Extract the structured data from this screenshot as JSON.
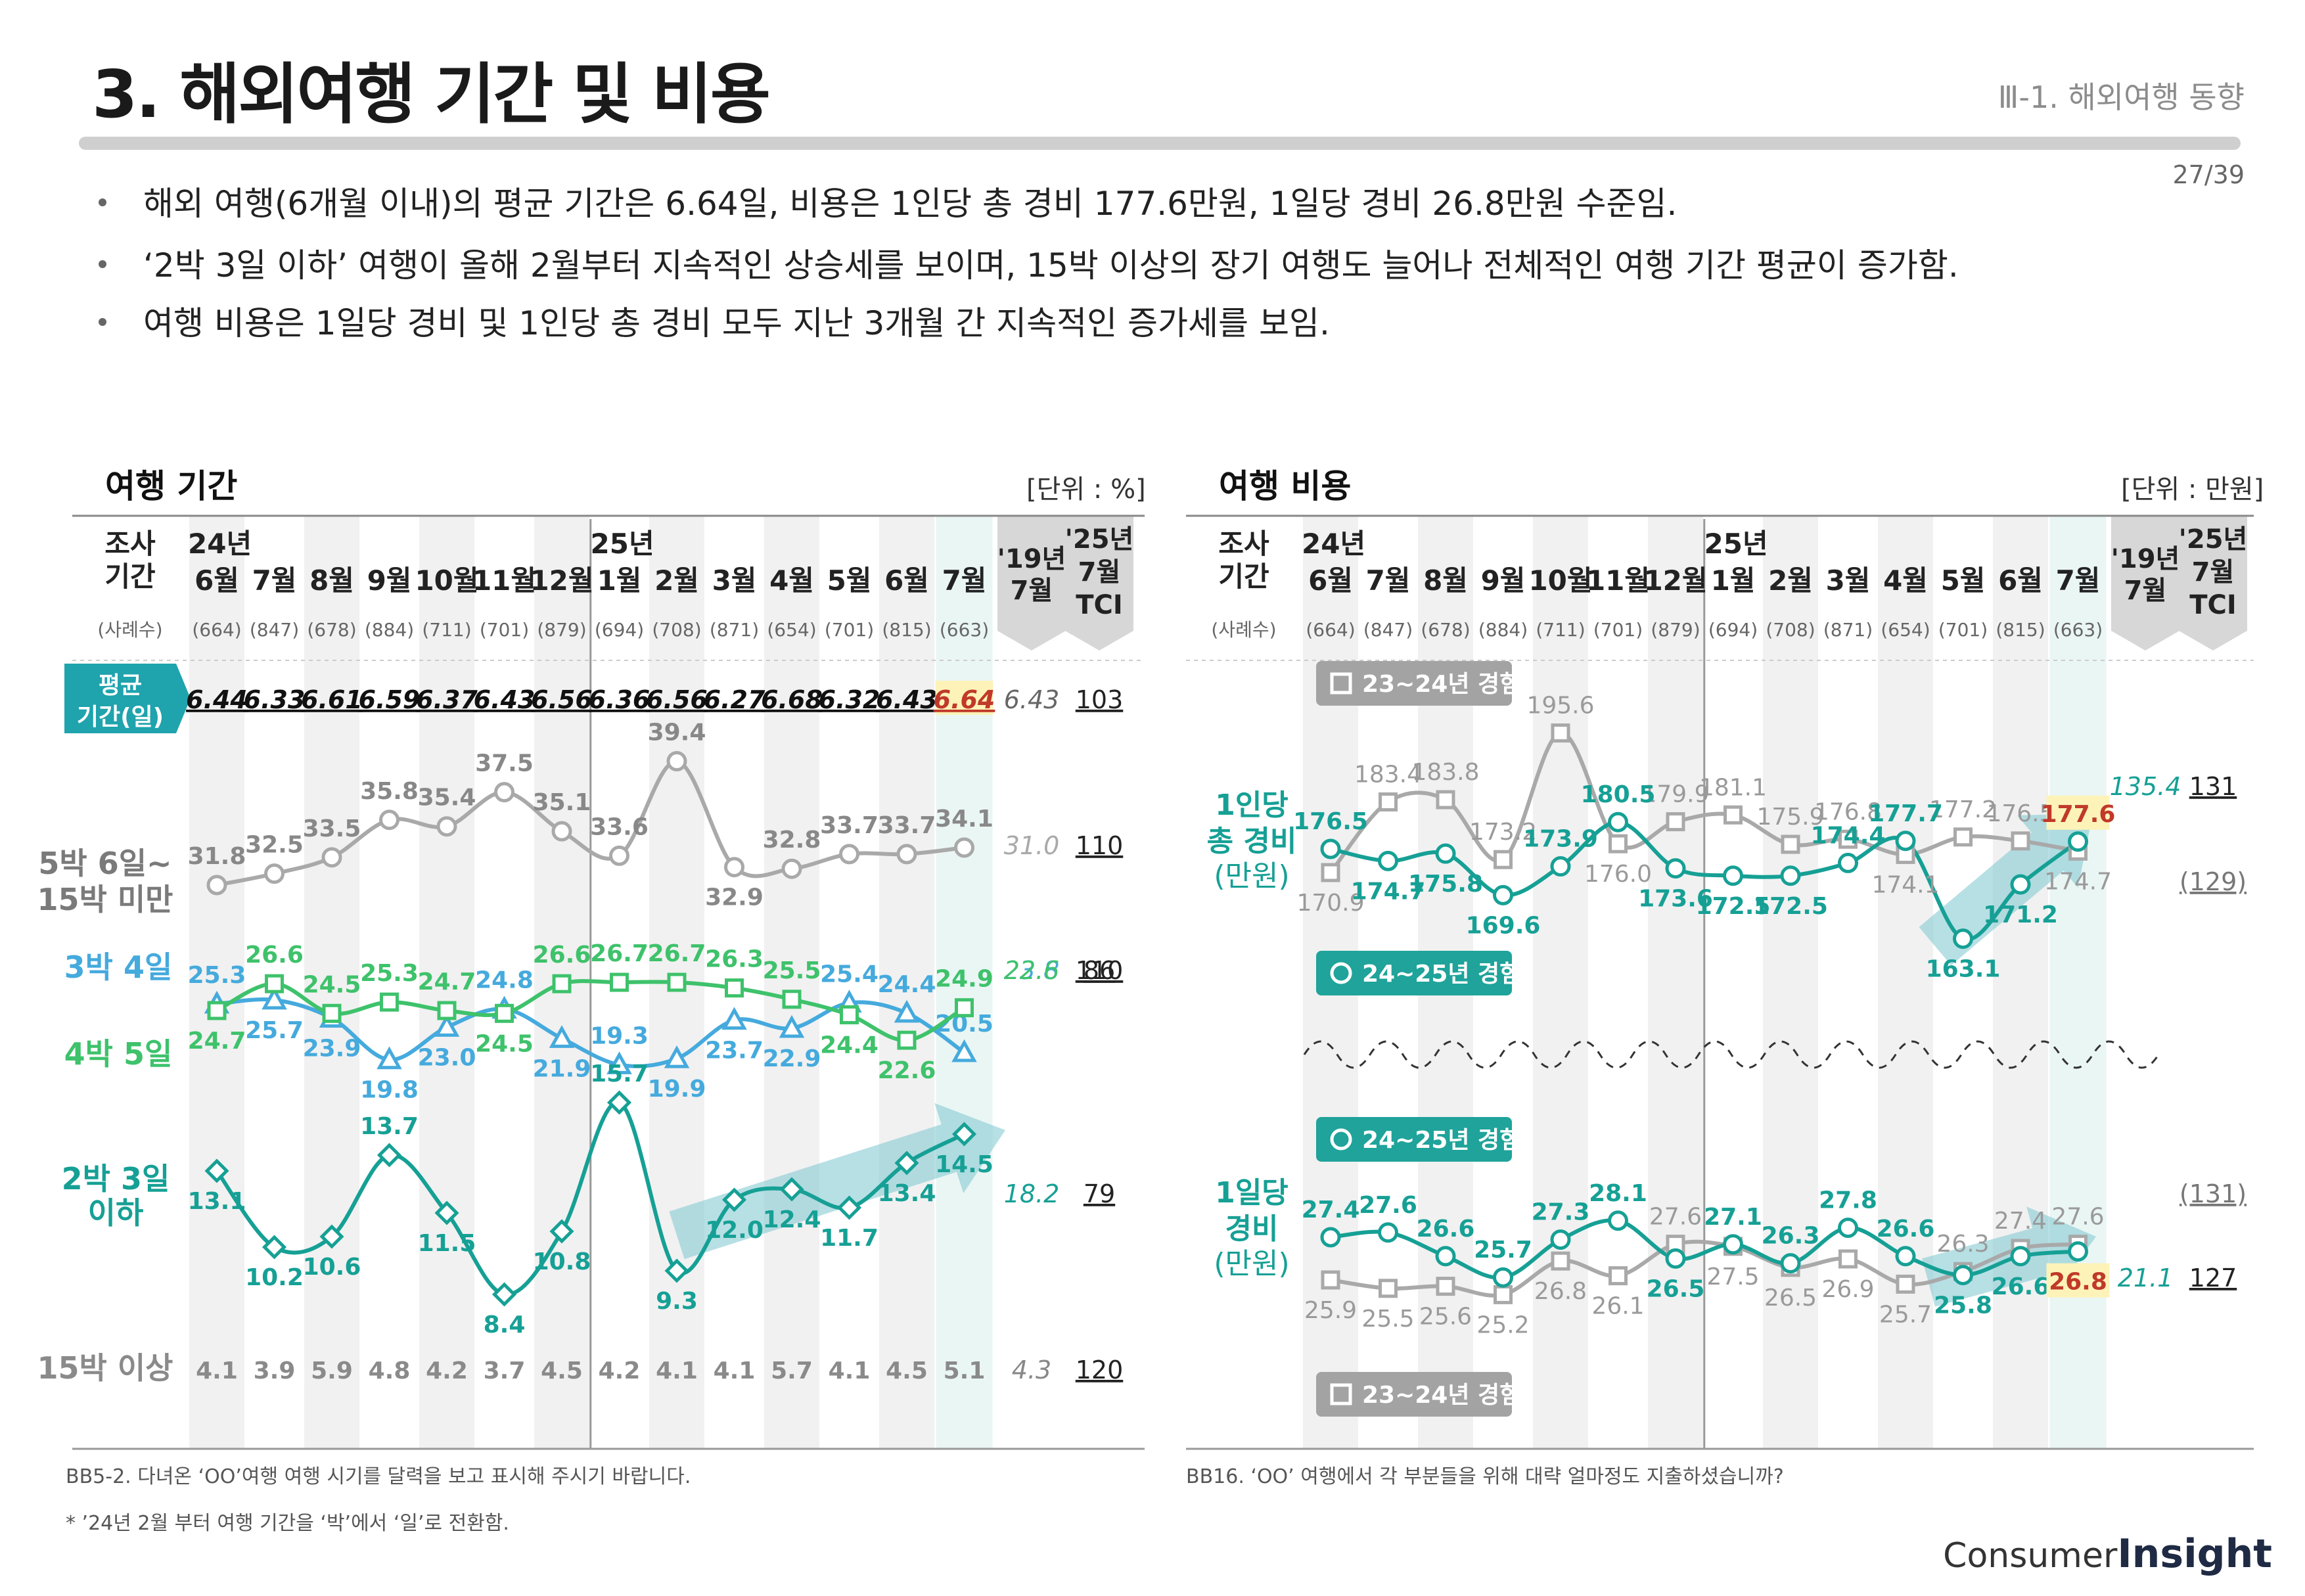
{
  "page": {
    "title": "3. 해외여행 기간 및 비용",
    "section": "Ⅲ-1. 해외여행 동향",
    "page_number": "27/39",
    "bullets": [
      "해외 여행(6개월 이내)의 평균 기간은 6.64일, 비용은 1인당 총 경비 177.6만원, 1일당 경비 26.8만원 수준임.",
      "‘2박 3일 이하’ 여행이 올해 2월부터 지속적인 상승세를 보이며, 15박 이상의 장기 여행도 늘어나 전체적인 여행 기간 평균이 증가함.",
      "여행 비용은 1일당 경비 및 1인당 총 경비 모두 지난 3개월 간 지속적인 증가세를 보임."
    ],
    "colors": {
      "gray": "#a9a9a9",
      "teal": "#16a095",
      "blue": "#45aadd",
      "green": "#3ec26b",
      "highlight_red": "#c0392b"
    }
  },
  "chart_data": [
    {
      "type": "line",
      "title": "여행 기간",
      "unit": "[단위 : %]",
      "header": {
        "survey_label": [
          "조사",
          "기간"
        ],
        "sample_label": "(사례수)",
        "year_labels": {
          "24": "24년",
          "25": "25년"
        },
        "months": [
          "6월",
          "7월",
          "8월",
          "9월",
          "10월",
          "11월",
          "12월",
          "1월",
          "2월",
          "3월",
          "4월",
          "5월",
          "6월",
          "7월"
        ],
        "samples": [
          "(664)",
          "(847)",
          "(678)",
          "(884)",
          "(711)",
          "(701)",
          "(879)",
          "(694)",
          "(708)",
          "(871)",
          "(654)",
          "(701)",
          "(815)",
          "(663)"
        ],
        "ref19": [
          "'19년",
          "7월"
        ],
        "tci": [
          "'25년",
          "7월",
          "TCI"
        ]
      },
      "avg": {
        "label": [
          "평균",
          "기간(일)"
        ],
        "values": [
          "6.44",
          "6.33",
          "6.61",
          "6.59",
          "6.37",
          "6.43",
          "6.56",
          "6.36",
          "6.56",
          "6.27",
          "6.68",
          "6.32",
          "6.43",
          "6.64"
        ],
        "ref19": "6.43",
        "tci": "103"
      },
      "series": [
        {
          "name": "5박 6일~ 15박 미만",
          "label": [
            "5박 6일~",
            "15박 미만"
          ],
          "values": [
            31.8,
            32.5,
            33.5,
            35.8,
            35.4,
            37.5,
            35.1,
            33.6,
            39.4,
            32.9,
            32.8,
            33.7,
            33.7,
            34.1
          ],
          "ref19": "31.0",
          "tci": "110"
        },
        {
          "name": "3박 4일",
          "label": [
            "3박 4일"
          ],
          "values": [
            25.3,
            25.7,
            23.9,
            19.8,
            23.0,
            24.8,
            21.9,
            19.3,
            19.9,
            23.7,
            22.9,
            25.4,
            24.4,
            20.5
          ],
          "ref19": "23.8",
          "tci": "86"
        },
        {
          "name": "4박 5일",
          "label": [
            "4박 5일"
          ],
          "values": [
            24.7,
            26.6,
            24.5,
            25.3,
            24.7,
            24.5,
            26.6,
            26.7,
            26.7,
            26.3,
            25.5,
            24.4,
            22.6,
            24.9
          ],
          "ref19": "22.6",
          "tci": "110"
        },
        {
          "name": "2박 3일 이하",
          "label": [
            "2박 3일",
            "이하"
          ],
          "values": [
            13.1,
            10.2,
            10.6,
            13.7,
            11.5,
            8.4,
            10.8,
            15.7,
            9.3,
            12.0,
            12.4,
            11.7,
            13.4,
            14.5
          ],
          "ref19": "18.2",
          "tci": "79"
        },
        {
          "name": "15박 이상",
          "label": [
            "15박 이상"
          ],
          "values": [
            4.1,
            3.9,
            5.9,
            4.8,
            4.2,
            3.7,
            4.5,
            4.2,
            4.1,
            4.1,
            5.7,
            4.1,
            4.5,
            5.1
          ],
          "ref19": "4.3",
          "tci": "120"
        }
      ],
      "footnotes": [
        "BB5-2. 다녀온 ‘OO’여행 여행 시기를 달력을 보고 표시해 주시기 바랍니다.",
        "* ’24년 2월 부터 여행 기간을 ‘박’에서 ‘일’로 전환함."
      ]
    },
    {
      "type": "line",
      "title": "여행 비용",
      "unit": "[단위 : 만원]",
      "header": {
        "survey_label": [
          "조사",
          "기간"
        ],
        "sample_label": "(사례수)",
        "year_labels": {
          "24": "24년",
          "25": "25년"
        },
        "months": [
          "6월",
          "7월",
          "8월",
          "9월",
          "10월",
          "11월",
          "12월",
          "1월",
          "2월",
          "3월",
          "4월",
          "5월",
          "6월",
          "7월"
        ],
        "samples": [
          "(664)",
          "(847)",
          "(678)",
          "(884)",
          "(711)",
          "(701)",
          "(879)",
          "(694)",
          "(708)",
          "(871)",
          "(654)",
          "(701)",
          "(815)",
          "(663)"
        ],
        "ref19": [
          "'19년",
          "7월"
        ],
        "tci": [
          "'25년",
          "7월",
          "TCI"
        ]
      },
      "legends": {
        "prev": "23~24년 경험",
        "curr": "24~25년 경험"
      },
      "groups": [
        {
          "name": "1인당 총 경비",
          "label": [
            "1인당",
            "총 경비",
            "(만원)"
          ],
          "prev": [
            170.9,
            183.4,
            183.8,
            173.2,
            195.6,
            176.0,
            179.9,
            181.1,
            175.9,
            176.8,
            174.1,
            177.2,
            176.5,
            174.7
          ],
          "curr": [
            176.5,
            174.7,
            175.8,
            169.6,
            173.9,
            180.5,
            173.6,
            172.5,
            172.5,
            174.4,
            177.7,
            163.1,
            171.2,
            177.6
          ],
          "ref19": "135.4",
          "tci": "131",
          "tci_prev": "(129)"
        },
        {
          "name": "1일당 경비",
          "label": [
            "1일당",
            "경비",
            "(만원)"
          ],
          "prev": [
            25.9,
            25.5,
            25.6,
            25.2,
            26.8,
            26.1,
            27.6,
            27.5,
            26.5,
            26.9,
            25.7,
            26.3,
            27.4,
            27.6
          ],
          "curr": [
            27.4,
            27.6,
            26.6,
            25.7,
            27.3,
            28.1,
            26.5,
            27.1,
            26.3,
            27.8,
            26.6,
            25.8,
            26.6,
            26.8
          ],
          "ref19": "21.1",
          "tci": "127",
          "tci_prev": "(131)"
        }
      ],
      "footnotes": [
        "BB16. ‘OO’ 여행에서 각 부분들을 위해 대략 얼마정도 지출하셨습니까?"
      ]
    }
  ],
  "logo": {
    "a": "Consumer",
    "b": "Insight"
  }
}
